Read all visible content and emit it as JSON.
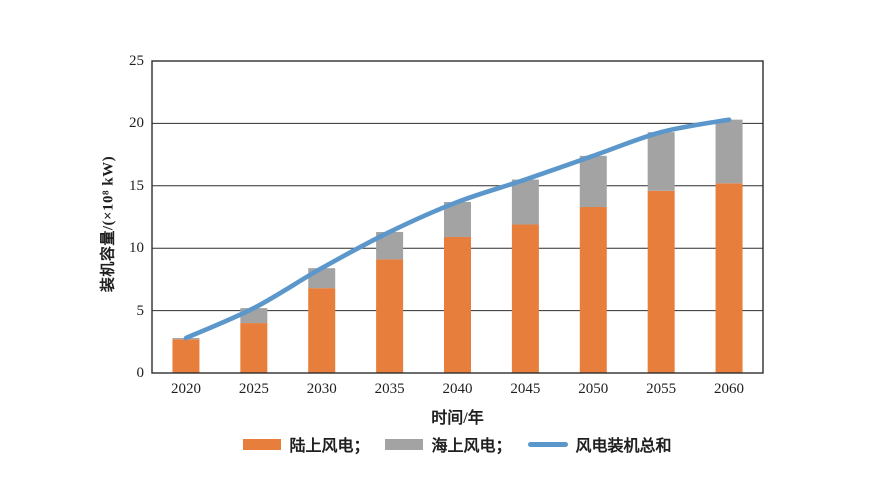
{
  "figure": {
    "background": "#ffffff",
    "text_color": "#1f1f1f",
    "axis_color": "#2e2e2e"
  },
  "chart_data": {
    "type": "bar",
    "stacked": true,
    "title": "",
    "xlabel": "时间/年",
    "ylabel": "装机容量/(×10⁸ kW)",
    "categories": [
      "2020",
      "2025",
      "2030",
      "2035",
      "2040",
      "2045",
      "2050",
      "2055",
      "2060"
    ],
    "series": [
      {
        "name": "陆上风电",
        "type": "bar",
        "color": "#E87E3C",
        "values": [
          2.7,
          4.0,
          6.8,
          9.1,
          10.9,
          11.9,
          13.3,
          14.6,
          15.2
        ]
      },
      {
        "name": "海上风电",
        "type": "bar",
        "color": "#A3A3A3",
        "values": [
          0.1,
          1.2,
          1.6,
          2.2,
          2.8,
          3.6,
          4.1,
          4.7,
          5.1
        ]
      },
      {
        "name": "风电装机总和",
        "type": "line",
        "color": "#5B97CB",
        "values": [
          2.8,
          5.2,
          8.4,
          11.3,
          13.7,
          15.5,
          17.4,
          19.3,
          20.3
        ]
      }
    ],
    "legend_labels": [
      "陆上风电；",
      "海上风电；",
      "风电装机总和"
    ],
    "legend_position": "bottom",
    "ylim": [
      0,
      25
    ],
    "yticks": [
      0,
      5,
      10,
      15,
      20,
      25
    ],
    "grid": true
  }
}
